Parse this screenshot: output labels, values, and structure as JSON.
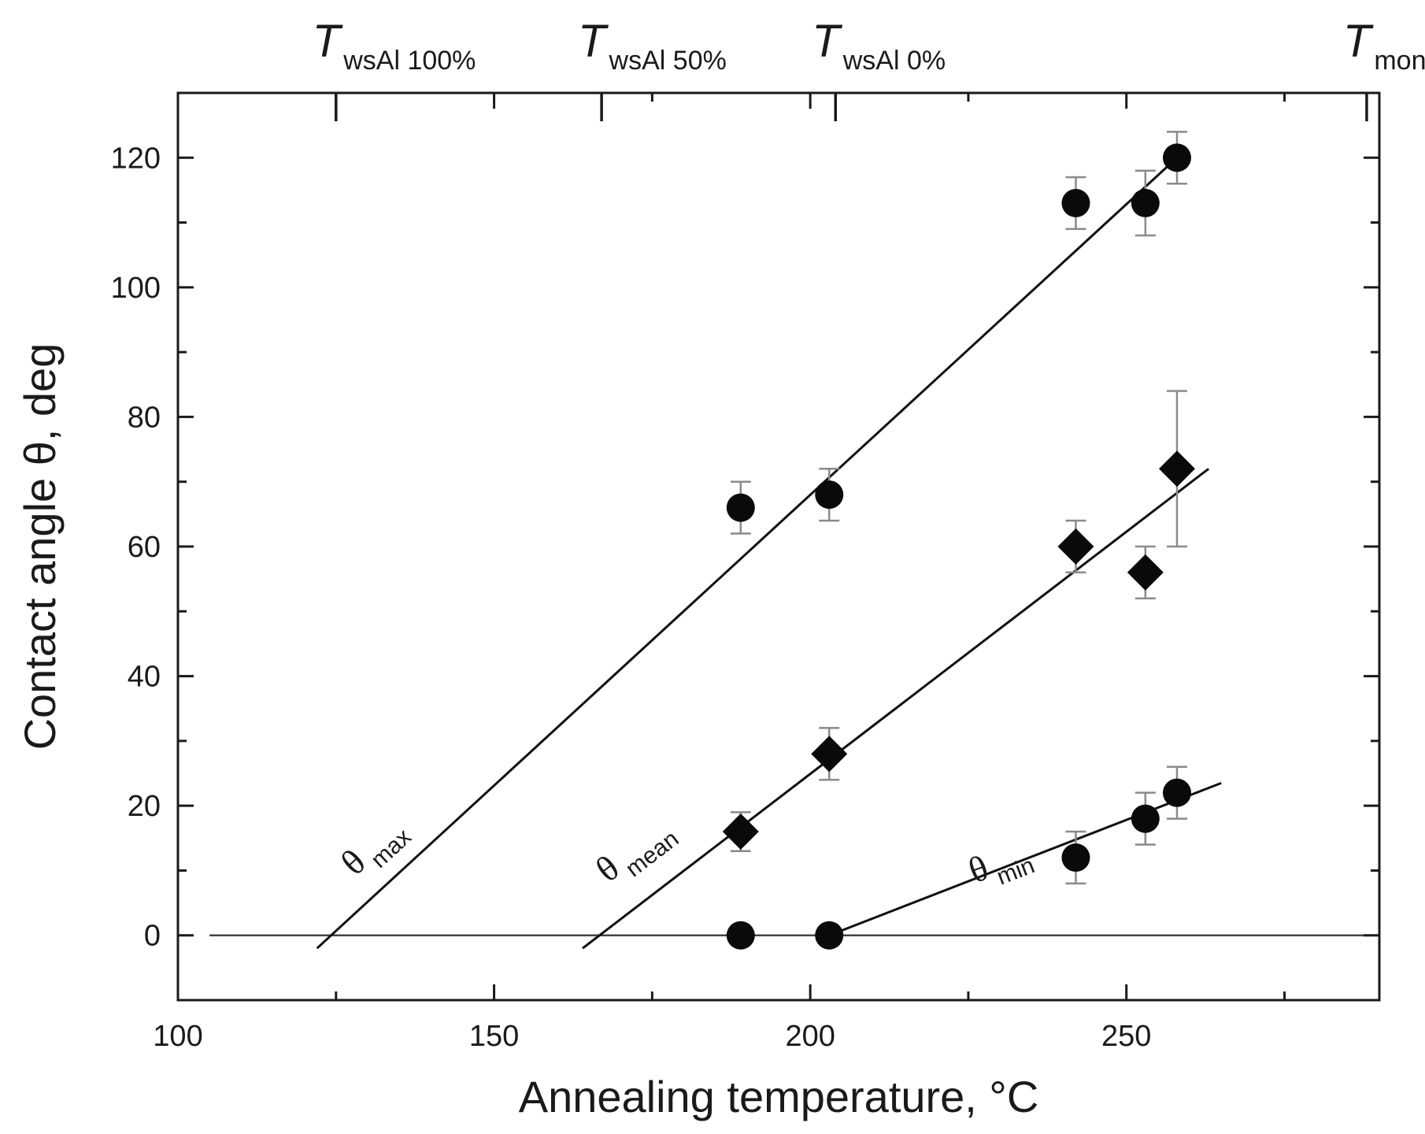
{
  "chart_data": {
    "type": "scatter",
    "title": "",
    "xlabel": "Annealing temperature, °C",
    "ylabel": "Contact angle θ, deg",
    "xlim": [
      100,
      290
    ],
    "ylim": [
      -10,
      130
    ],
    "x_ticks": [
      100,
      150,
      200,
      250
    ],
    "x_minor_step": 25,
    "y_ticks": [
      0,
      20,
      40,
      60,
      80,
      100,
      120
    ],
    "y_minor_step": 10,
    "zero_line": {
      "x_start": 105,
      "x_end": 290,
      "y": 0
    },
    "top_markers": [
      {
        "x": 125,
        "T": "T",
        "sub": "wsAl 100%"
      },
      {
        "x": 167,
        "T": "T",
        "sub": "wsAl 50%"
      },
      {
        "x": 204,
        "T": "T",
        "sub": "wsAl 0%"
      },
      {
        "x": 288,
        "T": "T",
        "sub": "mon"
      }
    ],
    "series": [
      {
        "name": "θmax",
        "marker": "circle",
        "label_symbol": "θ",
        "label_sub": "max",
        "label_at": [
          128,
          9
        ],
        "points": [
          {
            "x": 189,
            "y": 66,
            "err": 4
          },
          {
            "x": 203,
            "y": 68,
            "err": 4
          },
          {
            "x": 242,
            "y": 113,
            "err": 4
          },
          {
            "x": 253,
            "y": 113,
            "err": 5
          },
          {
            "x": 258,
            "y": 120,
            "err": 4
          }
        ],
        "fit": [
          [
            122,
            -2
          ],
          [
            258,
            120
          ]
        ]
      },
      {
        "name": "θmean",
        "marker": "diamond",
        "label_symbol": "θ",
        "label_sub": "mean",
        "label_at": [
          168,
          8
        ],
        "points": [
          {
            "x": 189,
            "y": 16,
            "err": 3
          },
          {
            "x": 203,
            "y": 28,
            "err": 4
          },
          {
            "x": 242,
            "y": 60,
            "err": 4
          },
          {
            "x": 253,
            "y": 56,
            "err": 4
          },
          {
            "x": 258,
            "y": 72,
            "err": 12
          }
        ],
        "fit": [
          [
            164,
            -2
          ],
          [
            263,
            72
          ]
        ]
      },
      {
        "name": "θmin",
        "marker": "circle",
        "label_symbol": "θ",
        "label_sub": "min",
        "label_at": [
          226,
          8
        ],
        "points": [
          {
            "x": 189,
            "y": 0,
            "err": 0
          },
          {
            "x": 203,
            "y": 0,
            "err": 0
          },
          {
            "x": 242,
            "y": 12,
            "err": 4
          },
          {
            "x": 253,
            "y": 18,
            "err": 4
          },
          {
            "x": 258,
            "y": 22,
            "err": 4
          }
        ],
        "fit": [
          [
            203,
            0
          ],
          [
            265,
            23.5
          ]
        ]
      }
    ]
  }
}
